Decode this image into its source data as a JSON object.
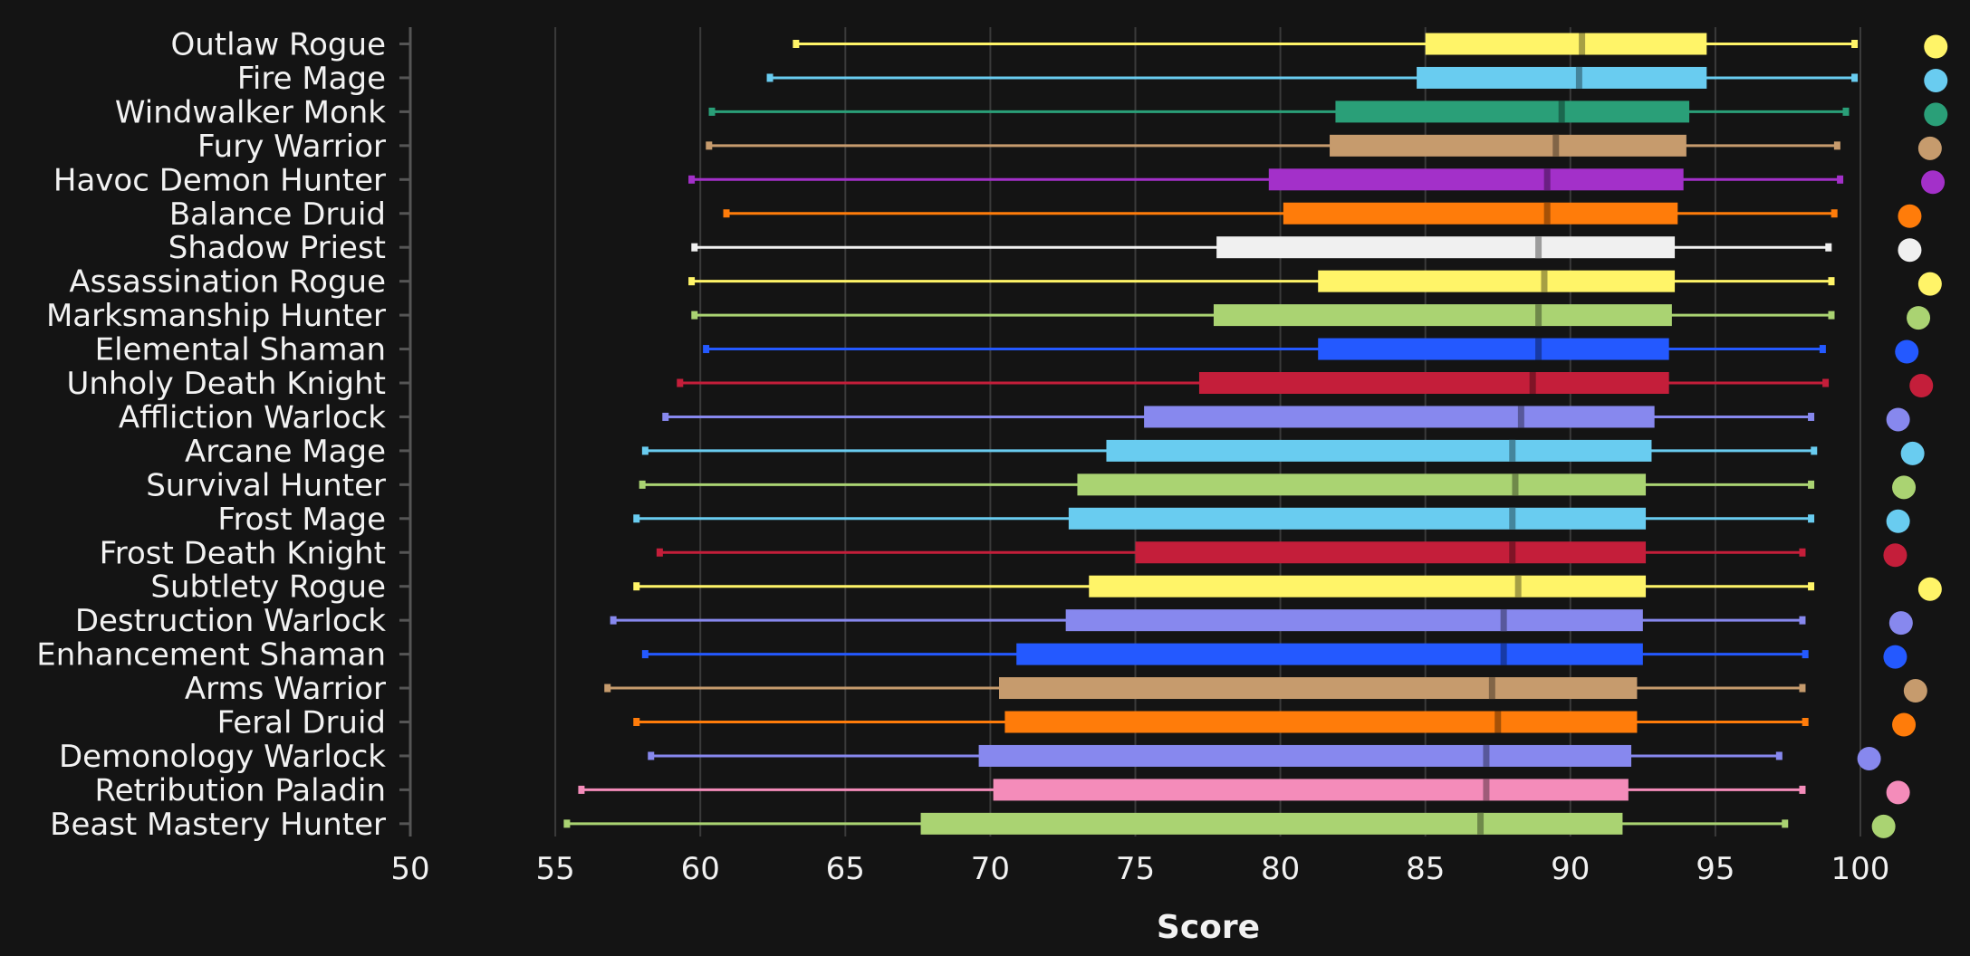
{
  "chart_data": {
    "type": "boxplot",
    "title": "",
    "xlabel": "Score",
    "ylabel": "",
    "xlim": [
      50,
      100
    ],
    "xticks": [
      "50",
      "55",
      "60",
      "65",
      "70",
      "75",
      "80",
      "85",
      "90",
      "95",
      "100"
    ],
    "grid": true,
    "series": [
      {
        "name": "Outlaw Rogue",
        "color": "#FFF468",
        "min": 63.3,
        "q1": 85.0,
        "median": 90.4,
        "q3": 94.7,
        "max": 99.8,
        "dot": 102.6
      },
      {
        "name": "Fire Mage",
        "color": "#69CCF0",
        "min": 62.4,
        "q1": 84.7,
        "median": 90.3,
        "q3": 94.7,
        "max": 99.8,
        "dot": 102.6
      },
      {
        "name": "Windwalker Monk",
        "color": "#2A9F78",
        "min": 60.4,
        "q1": 81.9,
        "median": 89.7,
        "q3": 94.1,
        "max": 99.5,
        "dot": 102.6
      },
      {
        "name": "Fury Warrior",
        "color": "#C69B6D",
        "min": 60.3,
        "q1": 81.7,
        "median": 89.5,
        "q3": 94.0,
        "max": 99.2,
        "dot": 102.4
      },
      {
        "name": "Havoc Demon Hunter",
        "color": "#A330C9",
        "min": 59.7,
        "q1": 79.6,
        "median": 89.2,
        "q3": 93.9,
        "max": 99.3,
        "dot": 102.5
      },
      {
        "name": "Balance Druid",
        "color": "#FF7C0A",
        "min": 60.9,
        "q1": 80.1,
        "median": 89.2,
        "q3": 93.7,
        "max": 99.1,
        "dot": 101.7
      },
      {
        "name": "Shadow Priest",
        "color": "#F0F0F0",
        "min": 59.8,
        "q1": 77.8,
        "median": 88.9,
        "q3": 93.6,
        "max": 98.9,
        "dot": 101.7
      },
      {
        "name": "Assassination Rogue",
        "color": "#FFF468",
        "min": 59.7,
        "q1": 81.3,
        "median": 89.1,
        "q3": 93.6,
        "max": 99.0,
        "dot": 102.4
      },
      {
        "name": "Marksmanship Hunter",
        "color": "#AAD372",
        "min": 59.8,
        "q1": 77.7,
        "median": 88.9,
        "q3": 93.5,
        "max": 99.0,
        "dot": 102.0
      },
      {
        "name": "Elemental Shaman",
        "color": "#2459FF",
        "min": 60.2,
        "q1": 81.3,
        "median": 88.9,
        "q3": 93.4,
        "max": 98.7,
        "dot": 101.6
      },
      {
        "name": "Unholy Death Knight",
        "color": "#C41E3A",
        "min": 59.3,
        "q1": 77.2,
        "median": 88.7,
        "q3": 93.4,
        "max": 98.8,
        "dot": 102.1
      },
      {
        "name": "Affliction Warlock",
        "color": "#8788EE",
        "min": 58.8,
        "q1": 75.3,
        "median": 88.3,
        "q3": 92.9,
        "max": 98.3,
        "dot": 101.3
      },
      {
        "name": "Arcane Mage",
        "color": "#69CCF0",
        "min": 58.1,
        "q1": 74.0,
        "median": 88.0,
        "q3": 92.8,
        "max": 98.4,
        "dot": 101.8
      },
      {
        "name": "Survival Hunter",
        "color": "#AAD372",
        "min": 58.0,
        "q1": 73.0,
        "median": 88.1,
        "q3": 92.6,
        "max": 98.3,
        "dot": 101.5
      },
      {
        "name": "Frost Mage",
        "color": "#69CCF0",
        "min": 57.8,
        "q1": 72.7,
        "median": 88.0,
        "q3": 92.6,
        "max": 98.3,
        "dot": 101.3
      },
      {
        "name": "Frost Death Knight",
        "color": "#C41E3A",
        "min": 58.6,
        "q1": 75.0,
        "median": 88.0,
        "q3": 92.6,
        "max": 98.0,
        "dot": 101.2
      },
      {
        "name": "Subtlety Rogue",
        "color": "#FFF468",
        "min": 57.8,
        "q1": 73.4,
        "median": 88.2,
        "q3": 92.6,
        "max": 98.3,
        "dot": 102.4
      },
      {
        "name": "Destruction Warlock",
        "color": "#8788EE",
        "min": 57.0,
        "q1": 72.6,
        "median": 87.7,
        "q3": 92.5,
        "max": 98.0,
        "dot": 101.4
      },
      {
        "name": "Enhancement Shaman",
        "color": "#2459FF",
        "min": 58.1,
        "q1": 70.9,
        "median": 87.7,
        "q3": 92.5,
        "max": 98.1,
        "dot": 101.2
      },
      {
        "name": "Arms Warrior",
        "color": "#C69B6D",
        "min": 56.8,
        "q1": 70.3,
        "median": 87.3,
        "q3": 92.3,
        "max": 98.0,
        "dot": 101.9
      },
      {
        "name": "Feral Druid",
        "color": "#FF7C0A",
        "min": 57.8,
        "q1": 70.5,
        "median": 87.5,
        "q3": 92.3,
        "max": 98.1,
        "dot": 101.5
      },
      {
        "name": "Demonology Warlock",
        "color": "#8788EE",
        "min": 58.3,
        "q1": 69.6,
        "median": 87.1,
        "q3": 92.1,
        "max": 97.2,
        "dot": 100.3
      },
      {
        "name": "Retribution Paladin",
        "color": "#F48CBA",
        "min": 55.9,
        "q1": 70.1,
        "median": 87.1,
        "q3": 92.0,
        "max": 98.0,
        "dot": 101.3
      },
      {
        "name": "Beast Mastery Hunter",
        "color": "#AAD372",
        "min": 55.4,
        "q1": 67.6,
        "median": 86.9,
        "q3": 91.8,
        "max": 97.4,
        "dot": 100.8
      }
    ]
  }
}
